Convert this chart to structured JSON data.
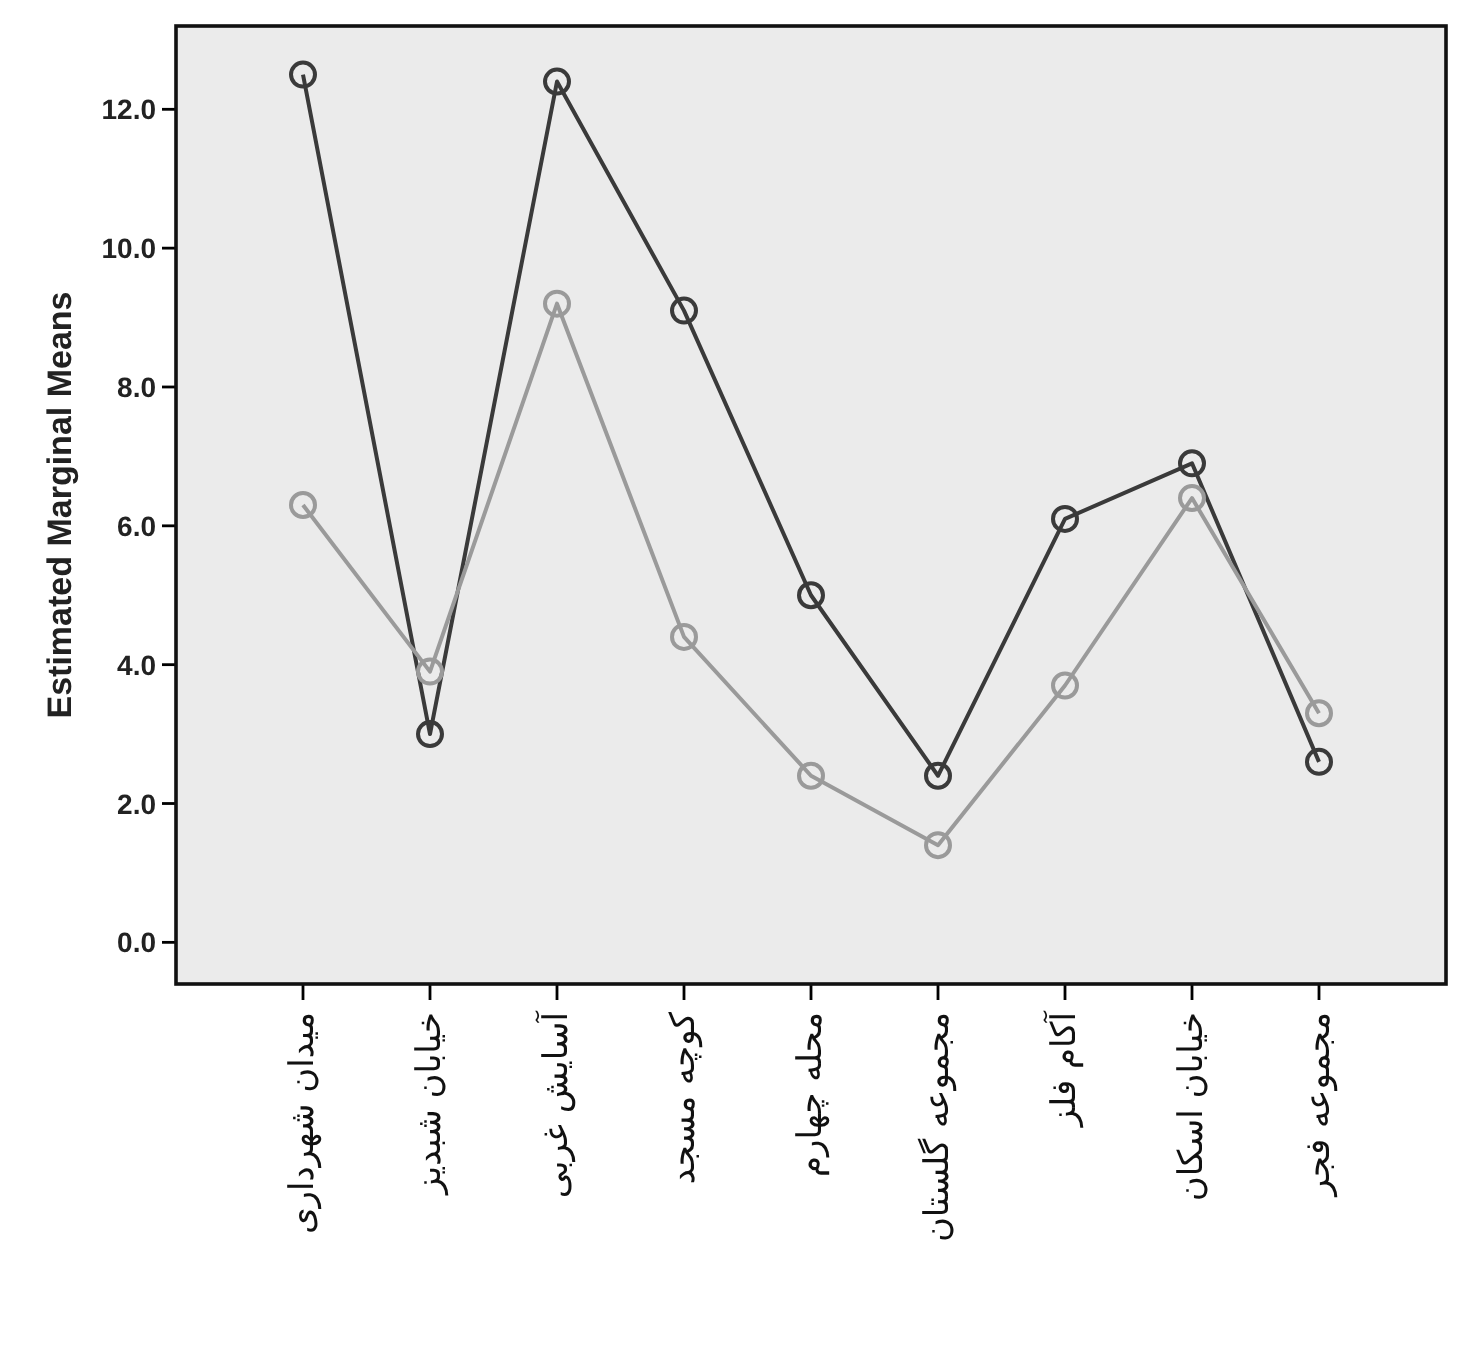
{
  "chart_data": {
    "type": "line",
    "ylabel": "Estimated Marginal Means",
    "categories": [
      "میدان شهرداری",
      "خیابان شبدیز",
      "آسایش غربی",
      "کوچه مسجد",
      "محله چهارم",
      "مجموعه گلستان",
      "آکام فلز",
      "خیابان اسکان",
      "مجموعه فجر"
    ],
    "series": [
      {
        "color": "#3a3a3a",
        "values": [
          12.5,
          3.0,
          12.4,
          9.1,
          5.0,
          2.4,
          6.1,
          6.9,
          2.6
        ]
      },
      {
        "color": "#9a9a9a",
        "values": [
          6.3,
          3.9,
          9.2,
          4.4,
          2.4,
          1.4,
          3.7,
          6.4,
          3.3
        ]
      }
    ],
    "marker": "circle",
    "ylim": [
      -0.6,
      13.2
    ],
    "yticks": [
      {
        "value": 0,
        "label": "0.0"
      },
      {
        "value": 2,
        "label": "2.0"
      },
      {
        "value": 4,
        "label": "4.0"
      },
      {
        "value": 6,
        "label": "6.0"
      },
      {
        "value": 8,
        "label": "8.0"
      },
      {
        "value": 10,
        "label": "10.0"
      },
      {
        "value": 12,
        "label": "12.0"
      }
    ]
  }
}
